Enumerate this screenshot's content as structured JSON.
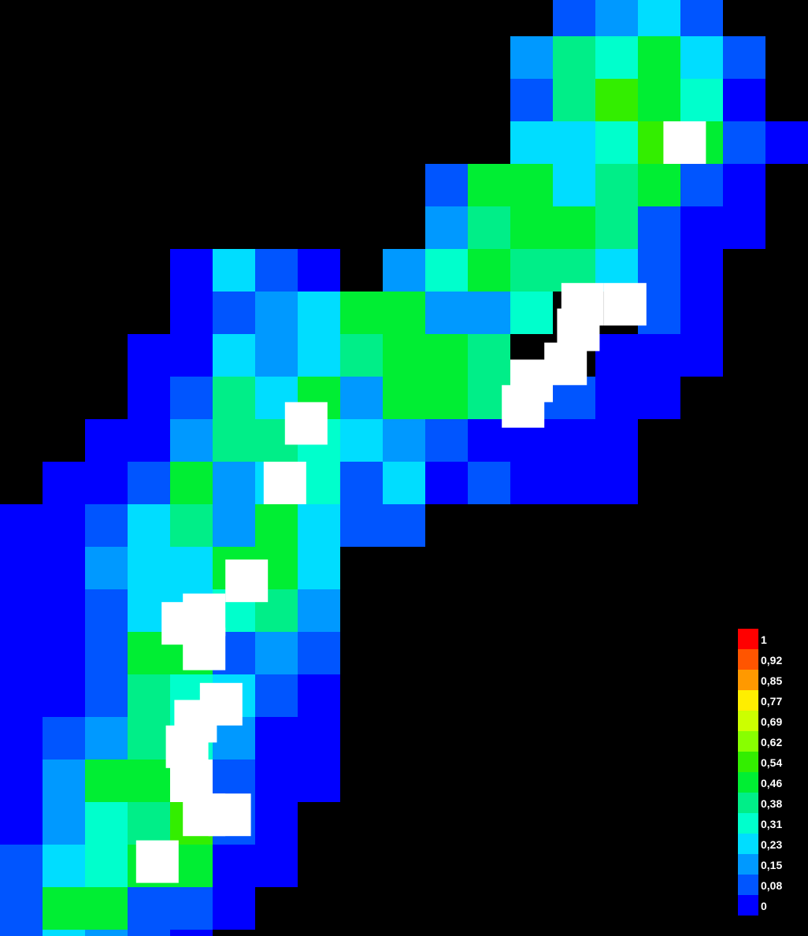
{
  "chart_data": {
    "type": "heatmap",
    "title": "",
    "xlabel": "",
    "ylabel": "",
    "grid": false,
    "legend_position": "bottom-right",
    "background": "#000000",
    "marker_color": "#ffffff",
    "value_range": [
      0,
      1
    ],
    "colorscale": [
      {
        "label": "1",
        "color": "#ff0000"
      },
      {
        "label": "0,92",
        "color": "#ff5500"
      },
      {
        "label": "0,85",
        "color": "#ff9900"
      },
      {
        "label": "0,77",
        "color": "#ffee00"
      },
      {
        "label": "0,69",
        "color": "#ccff00"
      },
      {
        "label": "0,62",
        "color": "#88ff00"
      },
      {
        "label": "0,54",
        "color": "#33ee00"
      },
      {
        "label": "0,46",
        "color": "#00ee33"
      },
      {
        "label": "0,38",
        "color": "#00ee88"
      },
      {
        "label": "0,31",
        "color": "#00ffcc"
      },
      {
        "label": "0,23",
        "color": "#00ddff"
      },
      {
        "label": "0,15",
        "color": "#0099ff"
      },
      {
        "label": "0,08",
        "color": "#0055ff"
      },
      {
        "label": "0",
        "color": "#0000ff"
      }
    ],
    "grid_rows": [
      ".............MLKM.",
      "............LIJHKM",
      "............MIGHJN",
      "............KKJGHMN",
      "..........MHHKIHMN",
      "..........LIHHIMNN",
      "....NKMN.LJHIIKMN",
      "....NMLKHHLLJ..MN",
      "...NNKLKIHHI..NNN",
      "...NMIKHLHHIMMNN",
      "..NNLIIJKLMNNNN",
      ".NNMHLKJMKNMNNN",
      "NNMKILHKMM",
      "NNLKKHHK",
      "NNMKKJIL",
      "NNMHHMLM",
      "NNMIJKMN",
      "NMLIJLNN",
      "NLHHJMNN",
      "NLJIGMN",
      "MKJHHNN",
      "MHHMMN",
      "MKLMN"
    ],
    "grid_cells": "Each character is one colour-scale class; A is the top legend class (1) and N the bottom (0); '.' is an empty cell",
    "markers": [
      {
        "row": 3,
        "col": 15.6
      },
      {
        "row": 6.8,
        "col": 13.2
      },
      {
        "row": 6.8,
        "col": 14.2
      },
      {
        "row": 7.4,
        "col": 13.1
      },
      {
        "row": 8.2,
        "col": 12.8
      },
      {
        "row": 8.6,
        "col": 12.0
      },
      {
        "row": 9.2,
        "col": 11.8
      },
      {
        "row": 9.6,
        "col": 6.7
      },
      {
        "row": 11.0,
        "col": 6.2
      },
      {
        "row": 13.3,
        "col": 5.3
      },
      {
        "row": 14.1,
        "col": 4.3
      },
      {
        "row": 14.3,
        "col": 3.8
      },
      {
        "row": 14.9,
        "col": 4.3
      },
      {
        "row": 16.2,
        "col": 4.7
      },
      {
        "row": 16.6,
        "col": 4.1
      },
      {
        "row": 17.2,
        "col": 3.9
      },
      {
        "row": 18.0,
        "col": 4.0
      },
      {
        "row": 18.8,
        "col": 4.9
      },
      {
        "row": 18.8,
        "col": 4.3
      },
      {
        "row": 19.9,
        "col": 3.2
      }
    ]
  }
}
